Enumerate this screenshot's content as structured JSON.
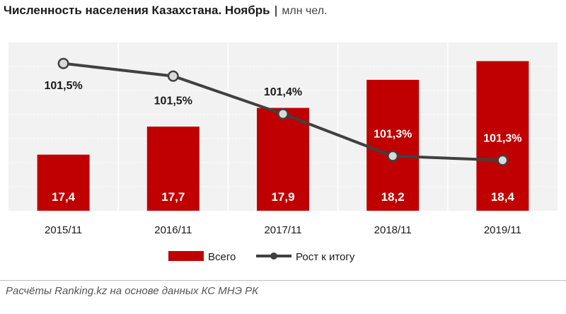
{
  "title": "Численность населения Казахстана. Ноябрь",
  "unit": "млн чел.",
  "source": "Расчёты Ranking.kz на основе данных  КС МНЭ РК",
  "colors": {
    "bar": "#c00000",
    "line": "#404040",
    "plot_bg": "#f2f2f2",
    "grid": "#ffffff"
  },
  "chart_data": {
    "type": "bar",
    "categories": [
      "2015/11",
      "2016/11",
      "2017/11",
      "2018/11",
      "2019/11"
    ],
    "series": [
      {
        "name": "Всего",
        "type": "bar",
        "axis": "primary",
        "values": [
          17.4,
          17.7,
          17.9,
          18.2,
          18.4
        ],
        "labels": [
          "17,4",
          "17,7",
          "17,9",
          "18,2",
          "18,4"
        ]
      },
      {
        "name": "Рост к итогу",
        "type": "line",
        "axis": "secondary",
        "values": [
          101.55,
          101.52,
          101.43,
          101.33,
          101.32
        ],
        "labels": [
          "101,5%",
          "101,5%",
          "101,4%",
          "101,3%",
          "101,3%"
        ]
      }
    ],
    "ylim": [
      16.8,
      18.6
    ],
    "y2lim": [
      101.2,
      101.6
    ],
    "grid": true,
    "legend_position": "bottom"
  }
}
